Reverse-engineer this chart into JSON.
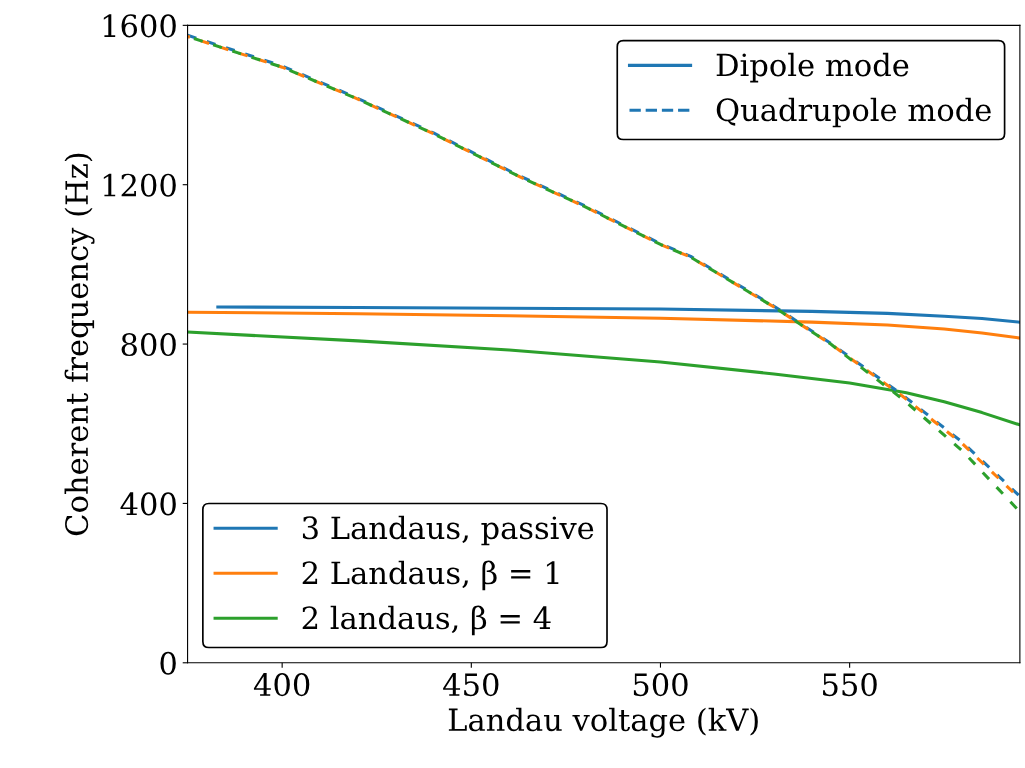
{
  "chart_data": {
    "type": "line",
    "xlabel": "Landau voltage (kV)",
    "ylabel": "Coherent frequency (Hz)",
    "xlim": [
      375,
      595
    ],
    "xticks": [
      400,
      450,
      500,
      550
    ],
    "ylim": [
      0,
      1600
    ],
    "yticks": [
      0,
      400,
      800,
      1200,
      1600
    ],
    "grid": false,
    "legend": "bottom left",
    "marker": "none",
    "annotations": [
      "Dipole mode",
      "Quadrupole mode"
    ],
    "series": [
      {
        "name": "3 Landaus, passive",
        "color": "#1f77b4",
        "line_style": "solid",
        "x": [
          383,
          420,
          460,
          500,
          540,
          560,
          575,
          585,
          595
        ],
        "values": [
          893,
          892,
          890,
          888,
          882,
          877,
          870,
          864,
          855
        ]
      },
      {
        "name": "2 Landaus, β = 1",
        "color": "#ff7f0e",
        "line_style": "solid",
        "x": [
          375,
          420,
          460,
          500,
          540,
          560,
          575,
          585,
          595
        ],
        "values": [
          880,
          876,
          871,
          865,
          855,
          848,
          838,
          828,
          815
        ]
      },
      {
        "name": "2 landaus, β = 4",
        "color": "#2ca02c",
        "line_style": "solid",
        "x": [
          375,
          420,
          460,
          500,
          530,
          550,
          565,
          575,
          585,
          595
        ],
        "values": [
          830,
          808,
          785,
          755,
          725,
          702,
          678,
          655,
          628,
          597
        ]
      },
      {
        "color": "#1f77b4",
        "line_style": "dashed",
        "x": [
          375,
          400,
          419,
          440,
          463,
          480,
          500,
          508,
          530,
          545,
          564,
          580,
          595
        ],
        "values": [
          1575,
          1498,
          1421,
          1330,
          1221,
          1147,
          1052,
          1020,
          895,
          802,
          672,
          552,
          418
        ]
      },
      {
        "color": "#ff7f0e",
        "line_style": "dashed",
        "x": [
          375,
          400,
          419,
          440,
          463,
          480,
          500,
          508,
          530,
          545,
          564,
          580,
          595
        ],
        "values": [
          1572,
          1495,
          1419,
          1328,
          1219,
          1145,
          1050,
          1018,
          893,
          800,
          669,
          548,
          412
        ]
      },
      {
        "color": "#2ca02c",
        "line_style": "dashed",
        "x": [
          375,
          400,
          419,
          440,
          463,
          480,
          500,
          508,
          530,
          545,
          564,
          580,
          595
        ],
        "values": [
          1572,
          1495,
          1419,
          1328,
          1219,
          1145,
          1050,
          1018,
          893,
          800,
          662,
          530,
          379
        ]
      }
    ]
  }
}
